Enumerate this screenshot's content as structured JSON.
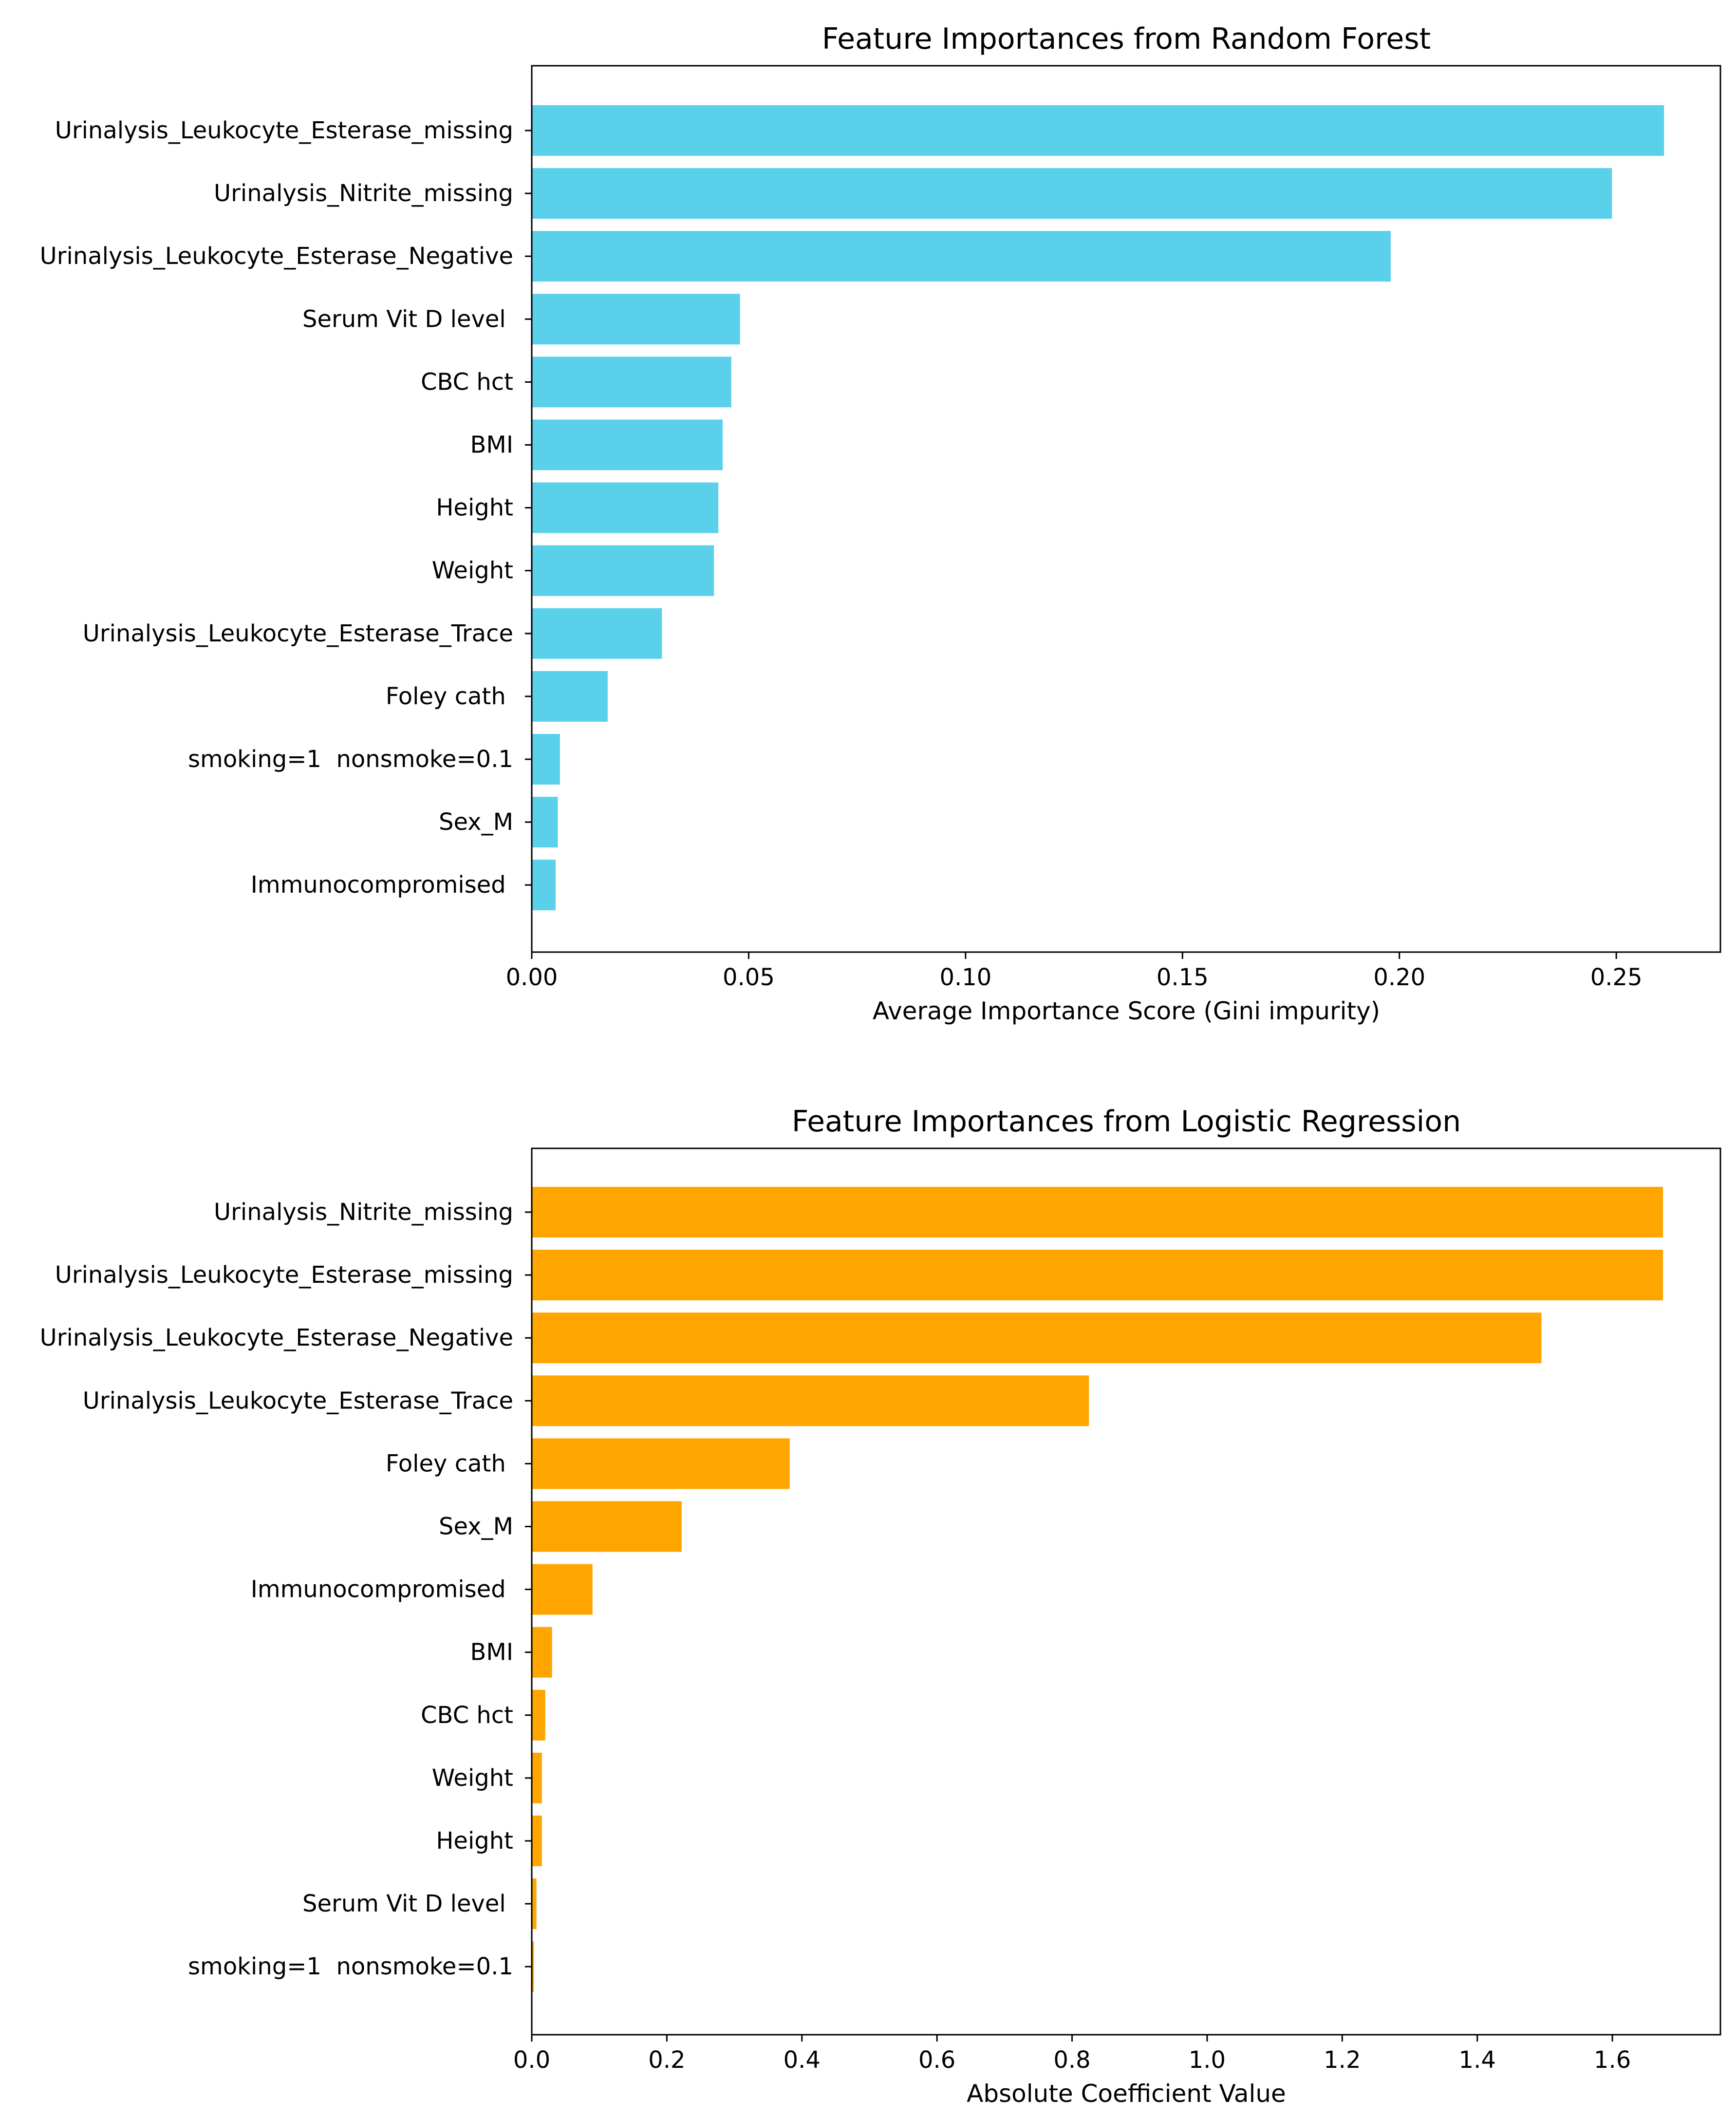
{
  "chart_data": [
    {
      "type": "bar",
      "orientation": "horizontal",
      "title": "Feature Importances from Random Forest",
      "xlabel": "Average Importance Score (Gini impurity)",
      "ylabel": "",
      "color": "#5bd0eb",
      "xlim": [
        0,
        0.274
      ],
      "xticks": [
        0.0,
        0.05,
        0.1,
        0.15,
        0.2,
        0.25
      ],
      "xtick_labels": [
        "0.00",
        "0.05",
        "0.10",
        "0.15",
        "0.20",
        "0.25"
      ],
      "grid": false,
      "categories": [
        "Urinalysis_Leukocyte_Esterase_missing",
        "Urinalysis_Nitrite_missing",
        "Urinalysis_Leukocyte_Esterase_Negative",
        "Serum Vit D level ",
        "CBC hct",
        "BMI",
        "Height",
        "Weight",
        "Urinalysis_Leukocyte_Esterase_Trace",
        "Foley cath ",
        "smoking=1  nonsmoke=0.1",
        "Sex_M",
        "Immunocompromised "
      ],
      "values": [
        0.261,
        0.249,
        0.198,
        0.048,
        0.046,
        0.044,
        0.043,
        0.042,
        0.03,
        0.0175,
        0.0065,
        0.006,
        0.0055
      ]
    },
    {
      "type": "bar",
      "orientation": "horizontal",
      "title": "Feature Importances from Logistic Regression",
      "xlabel": "Absolute Coefficient Value",
      "ylabel": "",
      "color": "#ffa500",
      "xlim": [
        0,
        1.76
      ],
      "xticks": [
        0.0,
        0.2,
        0.4,
        0.6,
        0.8,
        1.0,
        1.2,
        1.4,
        1.6
      ],
      "xtick_labels": [
        "0.0",
        "0.2",
        "0.4",
        "0.6",
        "0.8",
        "1.0",
        "1.2",
        "1.4",
        "1.6"
      ],
      "grid": false,
      "categories": [
        "Urinalysis_Nitrite_missing",
        "Urinalysis_Leukocyte_Esterase_missing",
        "Urinalysis_Leukocyte_Esterase_Negative",
        "Urinalysis_Leukocyte_Esterase_Trace",
        "Foley cath ",
        "Sex_M",
        "Immunocompromised ",
        "BMI",
        "CBC hct",
        "Weight",
        "Height",
        "Serum Vit D level ",
        "smoking=1  nonsmoke=0.1"
      ],
      "values": [
        1.675,
        1.675,
        1.495,
        0.825,
        0.382,
        0.222,
        0.09,
        0.03,
        0.02,
        0.015,
        0.015,
        0.007,
        0.003
      ]
    }
  ]
}
